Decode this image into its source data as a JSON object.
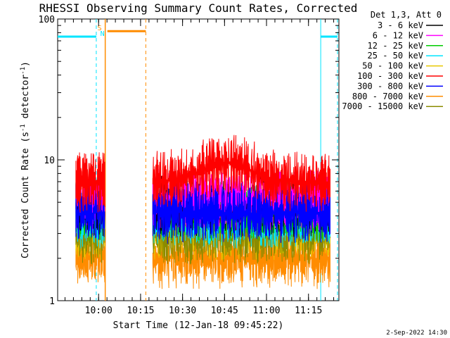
{
  "chart_data": {
    "type": "line",
    "title": "RHESSI Observing Summary Count Rates, Corrected",
    "xlabel": "Start Time (12-Jan-18 09:45:22)",
    "ylabel_main": "Corrected Count Rate (s",
    "ylabel_sup1": "-1",
    "ylabel_mid": " detector",
    "ylabel_sup2": "-1",
    "ylabel_end": ")",
    "y_scale": "log",
    "ylim": [
      1,
      100
    ],
    "y_ticks": [
      {
        "value": 1,
        "label": "1"
      },
      {
        "value": 10,
        "label": "10"
      },
      {
        "value": 100,
        "label": "100"
      }
    ],
    "xlim_minutes_after_start": [
      0,
      100.5
    ],
    "x_ticks": [
      {
        "minutes": 14.63,
        "label": "10:00"
      },
      {
        "minutes": 29.63,
        "label": "10:15"
      },
      {
        "minutes": 44.63,
        "label": "10:30"
      },
      {
        "minutes": 59.63,
        "label": "10:45"
      },
      {
        "minutes": 74.63,
        "label": "11:00"
      },
      {
        "minutes": 89.63,
        "label": "11:15"
      }
    ],
    "legend_title": "Det 1,3, Att 0",
    "legend_position": "top-right",
    "series": [
      {
        "name": "3 - 6 keV",
        "color": "#000000",
        "level": 4.7
      },
      {
        "name": "6 - 12 keV",
        "color": "#ff00ff",
        "level": 5.2
      },
      {
        "name": "12 - 25 keV",
        "color": "#00cc00",
        "level": 4.4
      },
      {
        "name": "25 - 50 keV",
        "color": "#00e5ff",
        "level": 3.9
      },
      {
        "name": "50 - 100 keV",
        "color": "#e8c800",
        "level": 3.2
      },
      {
        "name": "100 - 300 keV",
        "color": "#ff0000",
        "level": 7.0
      },
      {
        "name": "300 - 800 keV",
        "color": "#0000ff",
        "level": 4.2
      },
      {
        "name": "800 - 7000 keV",
        "color": "#ff8c00",
        "level": 2.0
      },
      {
        "name": "7000 - 15000 keV",
        "color": "#8b8b00",
        "level": 3.0
      }
    ],
    "data_intervals_minutes": [
      [
        6.5,
        17.0
      ],
      [
        34.0,
        97.5
      ]
    ],
    "saa_marker": {
      "label": "S",
      "color": "#ff8c00",
      "start_minutes": 17.0,
      "end_minutes": 31.5
    },
    "night_marker": {
      "label": "N",
      "color": "#00e5ff"
    },
    "night_intervals_minutes": [
      [
        0,
        13.8
      ],
      [
        94.0,
        100.0
      ]
    ],
    "attenuator_bar_level": 75,
    "saa_bar_level": 82
  },
  "footer": {
    "timestamp": "2-Sep-2022 14:30"
  },
  "colors": {
    "axes": "#000000",
    "background": "#ffffff",
    "night": "#00e5ff",
    "saa": "#ff8c00"
  }
}
